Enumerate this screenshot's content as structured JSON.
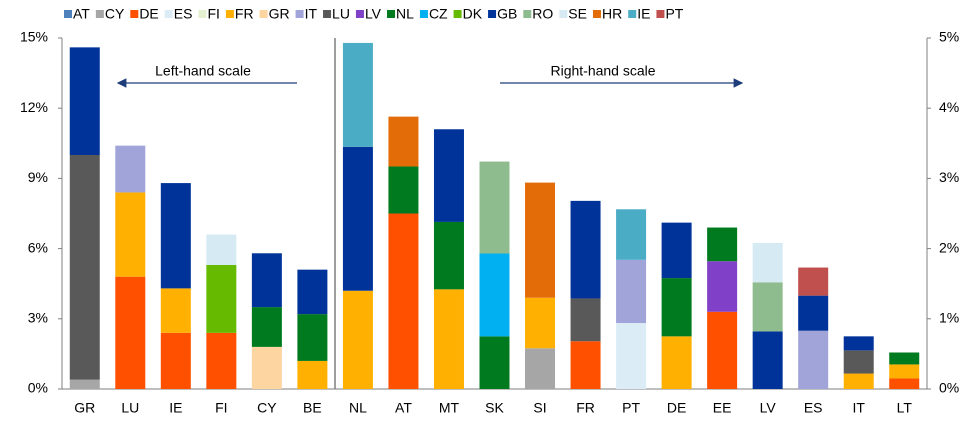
{
  "chart_data": {
    "type": "stacked-bar",
    "categories": [
      "GR",
      "LU",
      "IE",
      "FI",
      "CY",
      "BE"
    ],
    "y2_categories": [
      "NL",
      "AT",
      "MT",
      "SK",
      "SI",
      "FR",
      "PT",
      "DE",
      "EE",
      "LV",
      "ES",
      "IT",
      "LT"
    ],
    "annotations": [
      "Left-hand scale",
      "Right-hand scale"
    ],
    "ylim": [
      0,
      15
    ],
    "yticks": [
      {
        "value": 0,
        "label": "0%"
      },
      {
        "value": 3,
        "label": "3%"
      },
      {
        "value": 6,
        "label": "6%"
      },
      {
        "value": 9,
        "label": "9%"
      },
      {
        "value": 12,
        "label": "12%"
      },
      {
        "value": 15,
        "label": "15%"
      }
    ],
    "y2lim": [
      0,
      5
    ],
    "y2ticks": [
      {
        "value": 0,
        "label": "0%"
      },
      {
        "value": 1,
        "label": "1%"
      },
      {
        "value": 2,
        "label": "2%"
      },
      {
        "value": 3,
        "label": "3%"
      },
      {
        "value": 4,
        "label": "4%"
      },
      {
        "value": 5,
        "label": "5%"
      }
    ],
    "legend": "top",
    "series": [
      {
        "name": "AT",
        "color": "#4f81bd",
        "values": [
          null,
          null,
          null,
          null,
          null,
          null
        ],
        "values_y2": [
          null,
          null,
          null,
          null,
          null,
          null,
          null,
          null,
          null,
          null,
          null,
          null,
          null
        ]
      },
      {
        "name": "CY",
        "color": "#a6a6a6",
        "values": [
          0.4,
          null,
          null,
          null,
          null,
          null
        ],
        "values_y2": [
          null,
          null,
          null,
          null,
          0.58,
          null,
          null,
          null,
          null,
          null,
          null,
          null,
          null
        ]
      },
      {
        "name": "DE",
        "color": "#ff5000",
        "values": [
          null,
          4.8,
          2.4,
          2.4,
          null,
          null
        ],
        "values_y2": [
          null,
          2.5,
          null,
          null,
          null,
          0.68,
          null,
          null,
          1.1,
          null,
          null,
          null,
          0.15
        ]
      },
      {
        "name": "ES",
        "color": "#dcecf6",
        "values": [
          null,
          null,
          null,
          null,
          null,
          null
        ],
        "values_y2": [
          null,
          null,
          null,
          null,
          null,
          null,
          0.94,
          null,
          null,
          null,
          null,
          null,
          null
        ]
      },
      {
        "name": "FI",
        "color": "#e4f0d0",
        "values": [
          null,
          null,
          null,
          null,
          null,
          null
        ],
        "values_y2": [
          null,
          null,
          null,
          null,
          null,
          null,
          null,
          null,
          null,
          null,
          null,
          null,
          null
        ]
      },
      {
        "name": "FR",
        "color": "#ffb000",
        "values": [
          null,
          3.6,
          1.9,
          null,
          null,
          1.2
        ],
        "values_y2": [
          1.4,
          null,
          1.42,
          null,
          0.72,
          null,
          null,
          0.75,
          null,
          null,
          null,
          0.22,
          0.2
        ]
      },
      {
        "name": "GR",
        "color": "#fcd5a0",
        "values": [
          null,
          null,
          null,
          null,
          1.8,
          null
        ],
        "values_y2": [
          null,
          null,
          null,
          null,
          null,
          null,
          null,
          null,
          null,
          null,
          null,
          null,
          null
        ]
      },
      {
        "name": "IT",
        "color": "#a0a4d8",
        "values": [
          null,
          2.0,
          null,
          null,
          null,
          null
        ],
        "values_y2": [
          null,
          null,
          null,
          null,
          null,
          null,
          0.9,
          null,
          null,
          null,
          0.83,
          null,
          null
        ]
      },
      {
        "name": "LU",
        "color": "#595959",
        "values": [
          9.6,
          null,
          null,
          null,
          null,
          null
        ],
        "values_y2": [
          null,
          null,
          null,
          null,
          null,
          0.61,
          null,
          null,
          null,
          null,
          null,
          0.33,
          null
        ]
      },
      {
        "name": "LV",
        "color": "#8040c8",
        "values": [
          null,
          null,
          null,
          null,
          null,
          null
        ],
        "values_y2": [
          null,
          null,
          null,
          null,
          null,
          null,
          null,
          null,
          0.72,
          null,
          null,
          null,
          null
        ]
      },
      {
        "name": "NL",
        "color": "#007a1e",
        "values": [
          null,
          null,
          null,
          null,
          1.7,
          2.0
        ],
        "values_y2": [
          null,
          0.67,
          0.96,
          0.75,
          null,
          null,
          null,
          0.83,
          0.48,
          null,
          null,
          null,
          0.17
        ]
      },
      {
        "name": "CZ",
        "color": "#00b0f0",
        "values": [
          null,
          null,
          null,
          null,
          null,
          null
        ],
        "values_y2": [
          null,
          null,
          null,
          1.18,
          null,
          null,
          null,
          null,
          null,
          null,
          null,
          null,
          null
        ]
      },
      {
        "name": "DK",
        "color": "#66bb00",
        "values": [
          null,
          null,
          null,
          2.9,
          null,
          null
        ],
        "values_y2": [
          null,
          null,
          null,
          null,
          null,
          null,
          null,
          null,
          null,
          null,
          null,
          null,
          null
        ]
      },
      {
        "name": "GB",
        "color": "#003399",
        "values": [
          4.6,
          null,
          4.5,
          null,
          2.3,
          1.9
        ],
        "values_y2": [
          2.05,
          null,
          1.32,
          null,
          null,
          1.39,
          null,
          0.79,
          null,
          0.82,
          0.5,
          0.2,
          null
        ]
      },
      {
        "name": "RO",
        "color": "#8fbc8f",
        "values": [
          null,
          null,
          null,
          null,
          null,
          null
        ],
        "values_y2": [
          null,
          null,
          null,
          1.31,
          null,
          null,
          null,
          null,
          null,
          0.7,
          null,
          null,
          null
        ]
      },
      {
        "name": "SE",
        "color": "#d6eaf4",
        "values": [
          null,
          null,
          null,
          1.3,
          null,
          null
        ],
        "values_y2": [
          null,
          null,
          null,
          null,
          null,
          null,
          null,
          null,
          null,
          0.56,
          null,
          null,
          null
        ]
      },
      {
        "name": "HR",
        "color": "#e36c09",
        "values": [
          null,
          null,
          null,
          null,
          null,
          null
        ],
        "values_y2": [
          null,
          0.71,
          null,
          null,
          1.64,
          null,
          null,
          null,
          null,
          null,
          null,
          null,
          null
        ]
      },
      {
        "name": "IE",
        "color": "#4bacc6",
        "values": [
          null,
          null,
          null,
          null,
          null,
          null
        ],
        "values_y2": [
          1.48,
          null,
          null,
          null,
          null,
          null,
          0.72,
          null,
          null,
          null,
          null,
          null,
          null
        ]
      },
      {
        "name": "PT",
        "color": "#c0504d",
        "values": [
          null,
          null,
          null,
          null,
          null,
          null
        ],
        "values_y2": [
          null,
          null,
          null,
          null,
          null,
          null,
          null,
          null,
          null,
          null,
          0.4,
          null,
          null
        ]
      }
    ]
  }
}
